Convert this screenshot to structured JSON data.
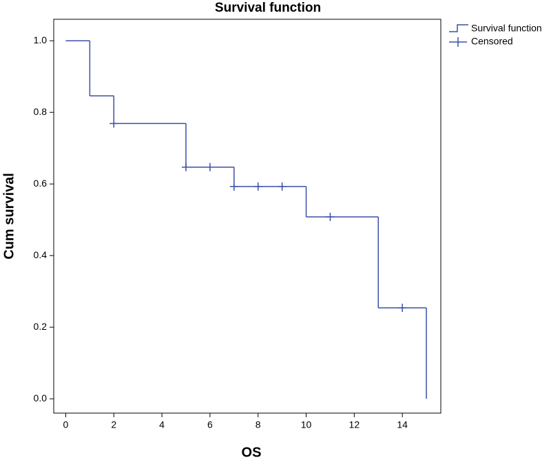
{
  "chart_data": {
    "type": "survival-step",
    "title": "Survival function",
    "x_label": "OS",
    "y_label": "Cum survival",
    "series": [
      {
        "name": "Survival function",
        "color": "#3b4ea5",
        "x": [
          0,
          1,
          2,
          5,
          7,
          10,
          13,
          15
        ],
        "values": [
          1.0,
          0.846,
          0.769,
          0.647,
          0.593,
          0.508,
          0.254,
          0.0
        ]
      },
      {
        "name": "Censored",
        "color": "#3b4ea5",
        "x": [
          2,
          5,
          6,
          7,
          8,
          9,
          11,
          14
        ],
        "values": [
          0.769,
          0.647,
          0.647,
          0.593,
          0.593,
          0.593,
          0.508,
          0.254
        ]
      }
    ],
    "xlim": [
      -0.5,
      15.6
    ],
    "ylim": [
      -0.04,
      1.06
    ],
    "xticks": [
      0,
      2,
      4,
      6,
      8,
      10,
      12,
      14
    ],
    "yticks": [
      {
        "value": 0,
        "label": "0.0"
      },
      0.2,
      0.4,
      0.6,
      0.8,
      {
        "value": 1,
        "label": "1.0"
      }
    ]
  }
}
